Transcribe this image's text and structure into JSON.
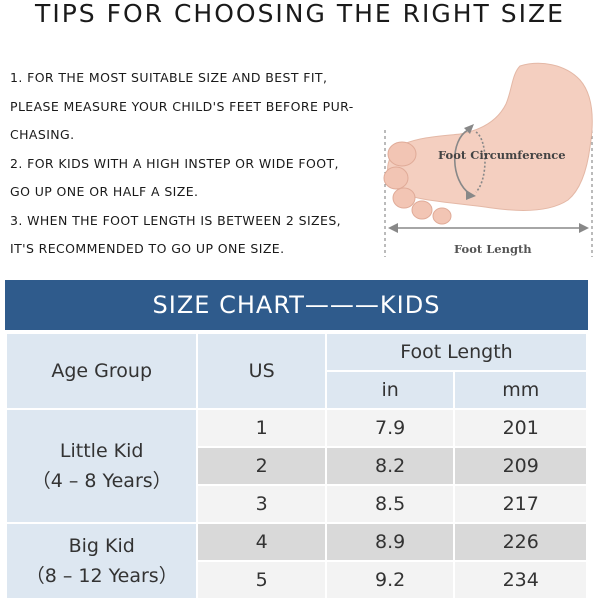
{
  "title": "TIPS FOR CHOOSING THE RIGHT SIZE",
  "tips": [
    "1. FOR THE MOST SUITABLE SIZE AND BEST FIT,",
    "PLEASE MEASURE YOUR CHILD'S FEET BEFORE PUR-",
    "CHASING.",
    "2. FOR KIDS WITH A HIGH INSTEP OR WIDE FOOT,",
    "GO UP ONE OR HALF A SIZE.",
    "3. WHEN THE FOOT LENGTH IS BETWEEN 2 SIZES,",
    "IT'S RECOMMENDED TO GO UP ONE SIZE."
  ],
  "figure": {
    "circumference_label": "Foot Circumference",
    "length_label": "Foot Length"
  },
  "chart": {
    "title": "SIZE CHART———KIDS",
    "headers": {
      "age_group": "Age Group",
      "us": "US",
      "foot_length": "Foot Length",
      "in": "in",
      "mm": "mm"
    },
    "groups": [
      {
        "name": "Little Kid",
        "range": "（4 – 8 Years）"
      },
      {
        "name": "Big Kid",
        "range": "（8 – 12 Years）"
      }
    ],
    "rows": [
      {
        "us": "1",
        "in": "7.9",
        "mm": "201"
      },
      {
        "us": "2",
        "in": "8.2",
        "mm": "209"
      },
      {
        "us": "3",
        "in": "8.5",
        "mm": "217"
      },
      {
        "us": "4",
        "in": "8.9",
        "mm": "226"
      },
      {
        "us": "5",
        "in": "9.2",
        "mm": "234"
      }
    ]
  },
  "colors": {
    "header_blue": "#2f5b8c",
    "light_blue": "#dde7f1",
    "row_light": "#f3f3f3",
    "row_dark": "#d9d9d9",
    "foot_skin": "#f4cfc0"
  }
}
